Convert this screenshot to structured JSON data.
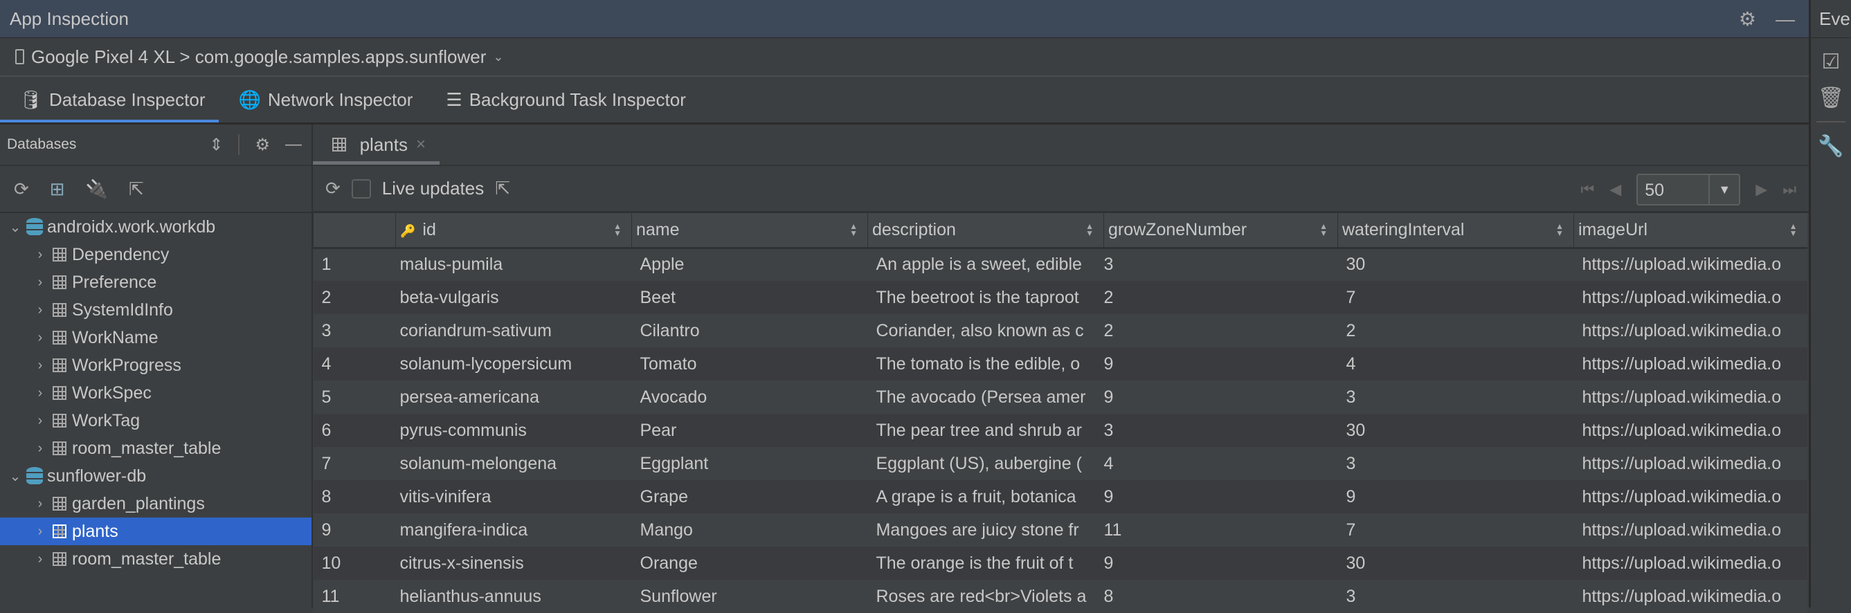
{
  "window": {
    "title": "App Inspection",
    "settings_icon": "gear-icon",
    "minimize_icon": "minimize-icon"
  },
  "device": {
    "label": "Google Pixel 4 XL > com.google.samples.apps.sunflower"
  },
  "tabs": [
    {
      "label": "Database Inspector",
      "icon": "database-icon",
      "active": true
    },
    {
      "label": "Network Inspector",
      "icon": "globe-icon",
      "active": false
    },
    {
      "label": "Background Task Inspector",
      "icon": "list-icon",
      "active": false
    }
  ],
  "databases_panel": {
    "title": "Databases",
    "tree": [
      {
        "label": "androidx.work.workdb",
        "type": "db",
        "expanded": true
      },
      {
        "label": "Dependency",
        "type": "table"
      },
      {
        "label": "Preference",
        "type": "table"
      },
      {
        "label": "SystemIdInfo",
        "type": "table"
      },
      {
        "label": "WorkName",
        "type": "table"
      },
      {
        "label": "WorkProgress",
        "type": "table"
      },
      {
        "label": "WorkSpec",
        "type": "table"
      },
      {
        "label": "WorkTag",
        "type": "table"
      },
      {
        "label": "room_master_table",
        "type": "table"
      },
      {
        "label": "sunflower-db",
        "type": "db",
        "expanded": true
      },
      {
        "label": "garden_plantings",
        "type": "table"
      },
      {
        "label": "plants",
        "type": "table",
        "selected": true
      },
      {
        "label": "room_master_table",
        "type": "table"
      }
    ]
  },
  "table_view": {
    "tab_label": "plants",
    "close_glyph": "×",
    "live_updates_label": "Live updates",
    "live_updates_checked": false,
    "page_size": "50",
    "columns": [
      "id",
      "name",
      "description",
      "growZoneNumber",
      "wateringInterval",
      "imageUrl"
    ],
    "rows": [
      [
        "1",
        "malus-pumila",
        "Apple",
        "An apple is a sweet, edible",
        "3",
        "30",
        "https://upload.wikimedia.o"
      ],
      [
        "2",
        "beta-vulgaris",
        "Beet",
        "The beetroot is the taproot",
        "2",
        "7",
        "https://upload.wikimedia.o"
      ],
      [
        "3",
        "coriandrum-sativum",
        "Cilantro",
        "Coriander, also known as c",
        "2",
        "2",
        "https://upload.wikimedia.o"
      ],
      [
        "4",
        "solanum-lycopersicum",
        "Tomato",
        "The tomato is the edible, o",
        "9",
        "4",
        "https://upload.wikimedia.o"
      ],
      [
        "5",
        "persea-americana",
        "Avocado",
        "The avocado (Persea amer",
        "9",
        "3",
        "https://upload.wikimedia.o"
      ],
      [
        "6",
        "pyrus-communis",
        "Pear",
        "The pear tree and shrub ar",
        "3",
        "30",
        "https://upload.wikimedia.o"
      ],
      [
        "7",
        "solanum-melongena",
        "Eggplant",
        "Eggplant (US), aubergine (",
        "4",
        "3",
        "https://upload.wikimedia.o"
      ],
      [
        "8",
        "vitis-vinifera",
        "Grape",
        "A grape is a fruit, botanica",
        "9",
        "9",
        "https://upload.wikimedia.o"
      ],
      [
        "9",
        "mangifera-indica",
        "Mango",
        "Mangoes are juicy stone fr",
        "11",
        "7",
        "https://upload.wikimedia.o"
      ],
      [
        "10",
        "citrus-x-sinensis",
        "Orange",
        "The orange is the fruit of t",
        "9",
        "30",
        "https://upload.wikimedia.o"
      ],
      [
        "11",
        "helianthus-annuus",
        "Sunflower",
        "Roses are red<br>Violets a",
        "8",
        "3",
        "https://upload.wikimedia.o"
      ]
    ]
  },
  "right_strip": {
    "label": "Eve"
  },
  "colors": {
    "accent": "#4a88e0",
    "selection": "#2f65ca",
    "titlebar": "#3d4858",
    "background": "#3c3f41"
  }
}
